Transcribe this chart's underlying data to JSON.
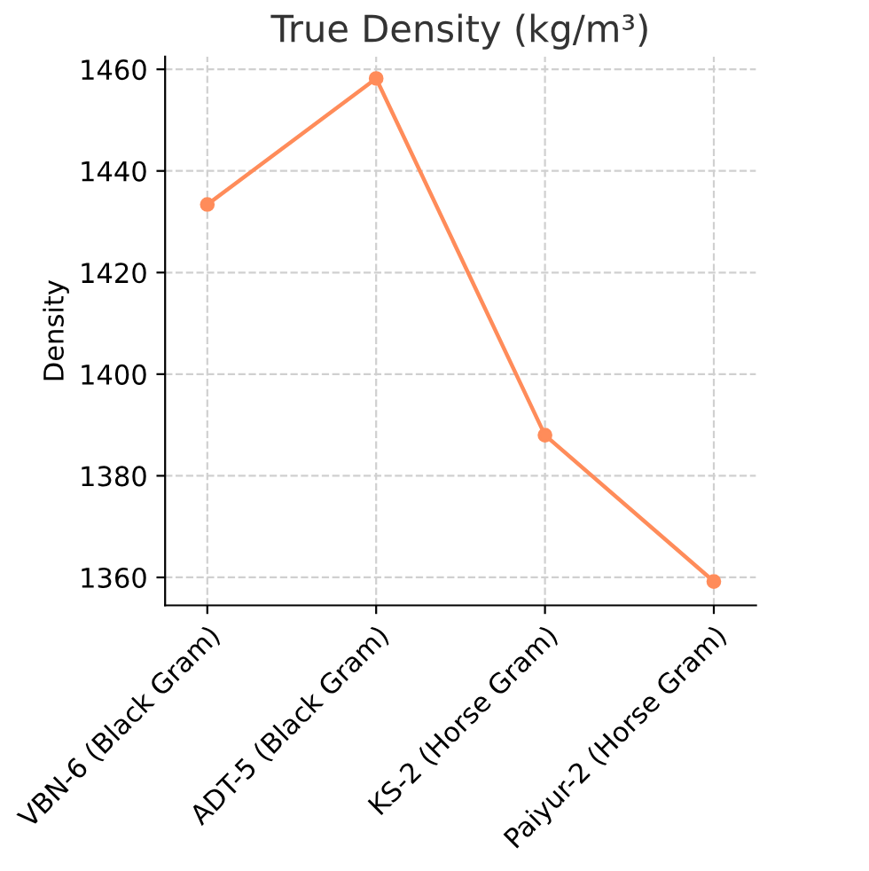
{
  "chart_data": {
    "type": "line",
    "title": "True Density (kg/m³)",
    "ylabel": "Density",
    "categories": [
      "VBN-6 (Black Gram)",
      "ADT-5 (Black Gram)",
      "KS-2 (Horse Gram)",
      "Paiyur-2 (Horse Gram)"
    ],
    "series": [
      {
        "color": "#ff8c5a",
        "values": [
          1433.4,
          1458.2,
          1388.0,
          1359.2
        ]
      }
    ],
    "ylim": [
      1354.5,
      1462.5
    ],
    "yticks": [
      1360,
      1380,
      1400,
      1420,
      1440,
      1460
    ],
    "grid": true,
    "marker": "circle",
    "line_style": "solid",
    "legend": false
  }
}
